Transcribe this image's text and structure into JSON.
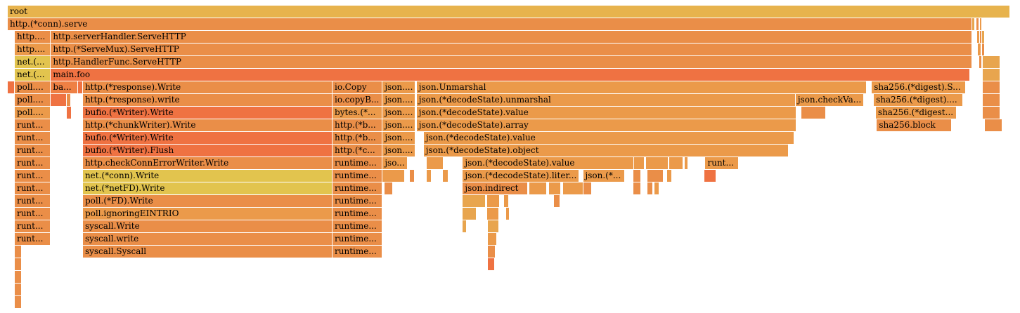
{
  "chart_data": {
    "type": "flamegraph",
    "total_units": 1000,
    "colors": {
      "c0": "#e7b34d",
      "c1": "#ea8e48",
      "c2": "#ef7242",
      "c3": "#e2c44e",
      "c4": "#eb9a4a",
      "c5": "#e8a54e",
      "c6": "#ee8044"
    },
    "frames": [
      {
        "d": 0,
        "s": 0,
        "w": 1000,
        "label": "root",
        "c": "c0"
      },
      {
        "d": 1,
        "s": 0,
        "w": 962,
        "label": "http.(*conn).serve",
        "c": "c1"
      },
      {
        "d": 1,
        "s": 962,
        "w": 3,
        "label": "",
        "c": "c5"
      },
      {
        "d": 1,
        "s": 966,
        "w": 3,
        "label": "",
        "c": "c1"
      },
      {
        "d": 1,
        "s": 970,
        "w": 2,
        "label": "",
        "c": "c4"
      },
      {
        "d": 2,
        "s": 7,
        "w": 36,
        "label": "http....",
        "c": "c1"
      },
      {
        "d": 2,
        "s": 43,
        "w": 919,
        "label": "http.serverHandler.ServeHTTP",
        "c": "c1"
      },
      {
        "d": 2,
        "s": 967,
        "w": 3,
        "label": "",
        "c": "c4"
      },
      {
        "d": 2,
        "s": 970,
        "w": 2,
        "label": "",
        "c": "c1"
      },
      {
        "d": 2,
        "s": 972,
        "w": 3,
        "label": "",
        "c": "c5"
      },
      {
        "d": 3,
        "s": 7,
        "w": 36,
        "label": "http....",
        "c": "c4"
      },
      {
        "d": 3,
        "s": 43,
        "w": 919,
        "label": "http.(*ServeMux).ServeHTTP",
        "c": "c1"
      },
      {
        "d": 3,
        "s": 968,
        "w": 3,
        "label": "",
        "c": "c4"
      },
      {
        "d": 3,
        "s": 972,
        "w": 3,
        "label": "",
        "c": "c1"
      },
      {
        "d": 4,
        "s": 7,
        "w": 36,
        "label": "net.(...",
        "c": "c3"
      },
      {
        "d": 4,
        "s": 43,
        "w": 919,
        "label": "http.HandlerFunc.ServeHTTP",
        "c": "c1"
      },
      {
        "d": 4,
        "s": 969,
        "w": 3,
        "label": "",
        "c": "c1"
      },
      {
        "d": 4,
        "s": 973,
        "w": 17,
        "label": "",
        "c": "c5"
      },
      {
        "d": 5,
        "s": 7,
        "w": 36,
        "label": "net.(...",
        "c": "c3"
      },
      {
        "d": 5,
        "s": 43,
        "w": 917,
        "label": "main.foo",
        "c": "c2"
      },
      {
        "d": 5,
        "s": 973,
        "w": 17,
        "label": "",
        "c": "c5"
      },
      {
        "d": 6,
        "s": 0,
        "w": 7,
        "label": "",
        "c": "c2"
      },
      {
        "d": 6,
        "s": 7,
        "w": 36,
        "label": "poll....",
        "c": "c1"
      },
      {
        "d": 6,
        "s": 43,
        "w": 27,
        "label": "ba...",
        "c": "c6"
      },
      {
        "d": 6,
        "s": 70,
        "w": 5,
        "label": "",
        "c": "c2"
      },
      {
        "d": 6,
        "s": 75,
        "w": 249,
        "label": "http.(*response).Write",
        "c": "c1"
      },
      {
        "d": 6,
        "s": 324,
        "w": 50,
        "label": "io.Copy",
        "c": "c1"
      },
      {
        "d": 6,
        "s": 374,
        "w": 33,
        "label": "json....",
        "c": "c4"
      },
      {
        "d": 6,
        "s": 408,
        "w": 449,
        "label": "json.Unmarshal",
        "c": "c4"
      },
      {
        "d": 6,
        "s": 862,
        "w": 94,
        "label": "sha256.(*digest).S...",
        "c": "c4"
      },
      {
        "d": 6,
        "s": 973,
        "w": 17,
        "label": "",
        "c": "c1"
      },
      {
        "d": 7,
        "s": 7,
        "w": 36,
        "label": "poll....",
        "c": "c1"
      },
      {
        "d": 7,
        "s": 43,
        "w": 16,
        "label": "",
        "c": "c2"
      },
      {
        "d": 7,
        "s": 59,
        "w": 4,
        "label": "",
        "c": "c1"
      },
      {
        "d": 7,
        "s": 75,
        "w": 249,
        "label": "http.(*response).write",
        "c": "c1"
      },
      {
        "d": 7,
        "s": 324,
        "w": 50,
        "label": "io.copyB...",
        "c": "c1"
      },
      {
        "d": 7,
        "s": 374,
        "w": 33,
        "label": "json....",
        "c": "c4"
      },
      {
        "d": 7,
        "s": 408,
        "w": 378,
        "label": "json.(*decodeState).unmarshal",
        "c": "c4"
      },
      {
        "d": 7,
        "s": 786,
        "w": 68,
        "label": "json.checkVa...",
        "c": "c4"
      },
      {
        "d": 7,
        "s": 864,
        "w": 89,
        "label": "sha256.(*digest)....",
        "c": "c4"
      },
      {
        "d": 7,
        "s": 973,
        "w": 17,
        "label": "",
        "c": "c1"
      },
      {
        "d": 8,
        "s": 7,
        "w": 36,
        "label": "poll....",
        "c": "c4"
      },
      {
        "d": 8,
        "s": 59,
        "w": 5,
        "label": "",
        "c": "c2"
      },
      {
        "d": 8,
        "s": 75,
        "w": 249,
        "label": "bufio.(*Writer).Write",
        "c": "c2"
      },
      {
        "d": 8,
        "s": 324,
        "w": 50,
        "label": "bytes.(*...",
        "c": "c4"
      },
      {
        "d": 8,
        "s": 374,
        "w": 33,
        "label": "json....",
        "c": "c4"
      },
      {
        "d": 8,
        "s": 408,
        "w": 379,
        "label": "json.(*decodeState).value",
        "c": "c4"
      },
      {
        "d": 8,
        "s": 792,
        "w": 24,
        "label": "",
        "c": "c1"
      },
      {
        "d": 8,
        "s": 866,
        "w": 81,
        "label": "sha256.(*digest...",
        "c": "c4"
      },
      {
        "d": 8,
        "s": 973,
        "w": 17,
        "label": "",
        "c": "c1"
      },
      {
        "d": 9,
        "s": 7,
        "w": 36,
        "label": "runt...",
        "c": "c1"
      },
      {
        "d": 9,
        "s": 75,
        "w": 249,
        "label": "http.(*chunkWriter).Write",
        "c": "c1"
      },
      {
        "d": 9,
        "s": 324,
        "w": 50,
        "label": "http.(*b...",
        "c": "c1"
      },
      {
        "d": 9,
        "s": 374,
        "w": 33,
        "label": "json....",
        "c": "c4"
      },
      {
        "d": 9,
        "s": 408,
        "w": 379,
        "label": "json.(*decodeState).array",
        "c": "c4"
      },
      {
        "d": 9,
        "s": 867,
        "w": 75,
        "label": "sha256.block",
        "c": "c1"
      },
      {
        "d": 9,
        "s": 975,
        "w": 17,
        "label": "",
        "c": "c1"
      },
      {
        "d": 10,
        "s": 7,
        "w": 36,
        "label": "runt...",
        "c": "c1"
      },
      {
        "d": 10,
        "s": 75,
        "w": 249,
        "label": "bufio.(*Writer).Write",
        "c": "c2"
      },
      {
        "d": 10,
        "s": 324,
        "w": 50,
        "label": "http.(*b...",
        "c": "c1"
      },
      {
        "d": 10,
        "s": 374,
        "w": 33,
        "label": "json....",
        "c": "c4"
      },
      {
        "d": 10,
        "s": 415,
        "w": 370,
        "label": "json.(*decodeState).value",
        "c": "c4"
      },
      {
        "d": 11,
        "s": 7,
        "w": 36,
        "label": "runt...",
        "c": "c1"
      },
      {
        "d": 11,
        "s": 75,
        "w": 249,
        "label": "bufio.(*Writer).Flush",
        "c": "c2"
      },
      {
        "d": 11,
        "s": 324,
        "w": 50,
        "label": "http.(*c...",
        "c": "c1"
      },
      {
        "d": 11,
        "s": 374,
        "w": 33,
        "label": "json....",
        "c": "c4"
      },
      {
        "d": 11,
        "s": 415,
        "w": 364,
        "label": "json.(*decodeState).object",
        "c": "c4"
      },
      {
        "d": 12,
        "s": 7,
        "w": 36,
        "label": "runt...",
        "c": "c1"
      },
      {
        "d": 12,
        "s": 75,
        "w": 249,
        "label": "http.checkConnErrorWriter.Write",
        "c": "c1"
      },
      {
        "d": 12,
        "s": 324,
        "w": 50,
        "label": "runtime...",
        "c": "c1"
      },
      {
        "d": 12,
        "s": 374,
        "w": 25,
        "label": "jso...",
        "c": "c4"
      },
      {
        "d": 12,
        "s": 418,
        "w": 17,
        "label": "",
        "c": "c4"
      },
      {
        "d": 12,
        "s": 454,
        "w": 171,
        "label": "json.(*decodeState).value",
        "c": "c4"
      },
      {
        "d": 12,
        "s": 625,
        "w": 10,
        "label": "",
        "c": "c4"
      },
      {
        "d": 12,
        "s": 637,
        "w": 22,
        "label": "",
        "c": "c4"
      },
      {
        "d": 12,
        "s": 660,
        "w": 14,
        "label": "",
        "c": "c4"
      },
      {
        "d": 12,
        "s": 675,
        "w": 4,
        "label": "",
        "c": "c4"
      },
      {
        "d": 12,
        "s": 696,
        "w": 33,
        "label": "runt...",
        "c": "c4"
      },
      {
        "d": 13,
        "s": 7,
        "w": 36,
        "label": "runt...",
        "c": "c1"
      },
      {
        "d": 13,
        "s": 75,
        "w": 249,
        "label": "net.(*conn).Write",
        "c": "c3"
      },
      {
        "d": 13,
        "s": 324,
        "w": 50,
        "label": "runtime...",
        "c": "c1"
      },
      {
        "d": 13,
        "s": 374,
        "w": 22,
        "label": "",
        "c": "c4"
      },
      {
        "d": 13,
        "s": 401,
        "w": 5,
        "label": "",
        "c": "c1"
      },
      {
        "d": 13,
        "s": 418,
        "w": 5,
        "label": "",
        "c": "c4"
      },
      {
        "d": 13,
        "s": 434,
        "w": 6,
        "label": "",
        "c": "c4"
      },
      {
        "d": 13,
        "s": 454,
        "w": 116,
        "label": "json.(*decodeState).liter...",
        "c": "c4"
      },
      {
        "d": 13,
        "s": 574,
        "w": 42,
        "label": "json.(*...",
        "c": "c4"
      },
      {
        "d": 13,
        "s": 624,
        "w": 8,
        "label": "",
        "c": "c1"
      },
      {
        "d": 13,
        "s": 638,
        "w": 16,
        "label": "",
        "c": "c1"
      },
      {
        "d": 13,
        "s": 658,
        "w": 5,
        "label": "",
        "c": "c4"
      },
      {
        "d": 13,
        "s": 695,
        "w": 12,
        "label": "",
        "c": "c2"
      },
      {
        "d": 14,
        "s": 7,
        "w": 36,
        "label": "runt...",
        "c": "c1"
      },
      {
        "d": 14,
        "s": 75,
        "w": 249,
        "label": "net.(*netFD).Write",
        "c": "c3"
      },
      {
        "d": 14,
        "s": 324,
        "w": 50,
        "label": "runtime...",
        "c": "c1"
      },
      {
        "d": 14,
        "s": 376,
        "w": 8,
        "label": "",
        "c": "c1"
      },
      {
        "d": 14,
        "s": 454,
        "w": 65,
        "label": "json.indirect",
        "c": "c1"
      },
      {
        "d": 14,
        "s": 520,
        "w": 18,
        "label": "",
        "c": "c4"
      },
      {
        "d": 14,
        "s": 540,
        "w": 12,
        "label": "",
        "c": "c4"
      },
      {
        "d": 14,
        "s": 554,
        "w": 20,
        "label": "",
        "c": "c4"
      },
      {
        "d": 14,
        "s": 574,
        "w": 9,
        "label": "",
        "c": "c1"
      },
      {
        "d": 14,
        "s": 624,
        "w": 8,
        "label": "",
        "c": "c1"
      },
      {
        "d": 14,
        "s": 638,
        "w": 6,
        "label": "",
        "c": "c1"
      },
      {
        "d": 14,
        "s": 645,
        "w": 5,
        "label": "",
        "c": "c4"
      },
      {
        "d": 15,
        "s": 7,
        "w": 36,
        "label": "runt...",
        "c": "c1"
      },
      {
        "d": 15,
        "s": 75,
        "w": 249,
        "label": "poll.(*FD).Write",
        "c": "c1"
      },
      {
        "d": 15,
        "s": 324,
        "w": 50,
        "label": "runtime...",
        "c": "c1"
      },
      {
        "d": 15,
        "s": 454,
        "w": 23,
        "label": "",
        "c": "c5"
      },
      {
        "d": 15,
        "s": 478,
        "w": 13,
        "label": "",
        "c": "c4"
      },
      {
        "d": 15,
        "s": 495,
        "w": 5,
        "label": "",
        "c": "c4"
      },
      {
        "d": 15,
        "s": 545,
        "w": 6,
        "label": "",
        "c": "c1"
      },
      {
        "d": 16,
        "s": 7,
        "w": 36,
        "label": "runt...",
        "c": "c1"
      },
      {
        "d": 16,
        "s": 75,
        "w": 249,
        "label": "poll.ignoringEINTRIO",
        "c": "c4"
      },
      {
        "d": 16,
        "s": 324,
        "w": 50,
        "label": "runtime...",
        "c": "c1"
      },
      {
        "d": 16,
        "s": 454,
        "w": 14,
        "label": "",
        "c": "c5"
      },
      {
        "d": 16,
        "s": 478,
        "w": 12,
        "label": "",
        "c": "c4"
      },
      {
        "d": 16,
        "s": 497,
        "w": 4,
        "label": "",
        "c": "c4"
      },
      {
        "d": 17,
        "s": 7,
        "w": 36,
        "label": "runt...",
        "c": "c1"
      },
      {
        "d": 17,
        "s": 75,
        "w": 249,
        "label": "syscall.Write",
        "c": "c1"
      },
      {
        "d": 17,
        "s": 324,
        "w": 50,
        "label": "runtime...",
        "c": "c1"
      },
      {
        "d": 17,
        "s": 454,
        "w": 4,
        "label": "",
        "c": "c5"
      },
      {
        "d": 17,
        "s": 479,
        "w": 11,
        "label": "",
        "c": "c5"
      },
      {
        "d": 18,
        "s": 7,
        "w": 36,
        "label": "runt...",
        "c": "c1"
      },
      {
        "d": 18,
        "s": 75,
        "w": 249,
        "label": "syscall.write",
        "c": "c1"
      },
      {
        "d": 18,
        "s": 324,
        "w": 50,
        "label": "runtime...",
        "c": "c1"
      },
      {
        "d": 18,
        "s": 479,
        "w": 9,
        "label": "",
        "c": "c4"
      },
      {
        "d": 19,
        "s": 7,
        "w": 7,
        "label": "",
        "c": "c1"
      },
      {
        "d": 19,
        "s": 75,
        "w": 249,
        "label": "syscall.Syscall",
        "c": "c1"
      },
      {
        "d": 19,
        "s": 324,
        "w": 50,
        "label": "runtime...",
        "c": "c1"
      },
      {
        "d": 19,
        "s": 479,
        "w": 8,
        "label": "",
        "c": "c1"
      },
      {
        "d": 20,
        "s": 7,
        "w": 7,
        "label": "",
        "c": "c1"
      },
      {
        "d": 20,
        "s": 479,
        "w": 7,
        "label": "",
        "c": "c2"
      },
      {
        "d": 21,
        "s": 7,
        "w": 7,
        "label": "",
        "c": "c1"
      },
      {
        "d": 22,
        "s": 7,
        "w": 7,
        "label": "",
        "c": "c1"
      },
      {
        "d": 23,
        "s": 7,
        "w": 7,
        "label": "",
        "c": "c1"
      }
    ]
  }
}
